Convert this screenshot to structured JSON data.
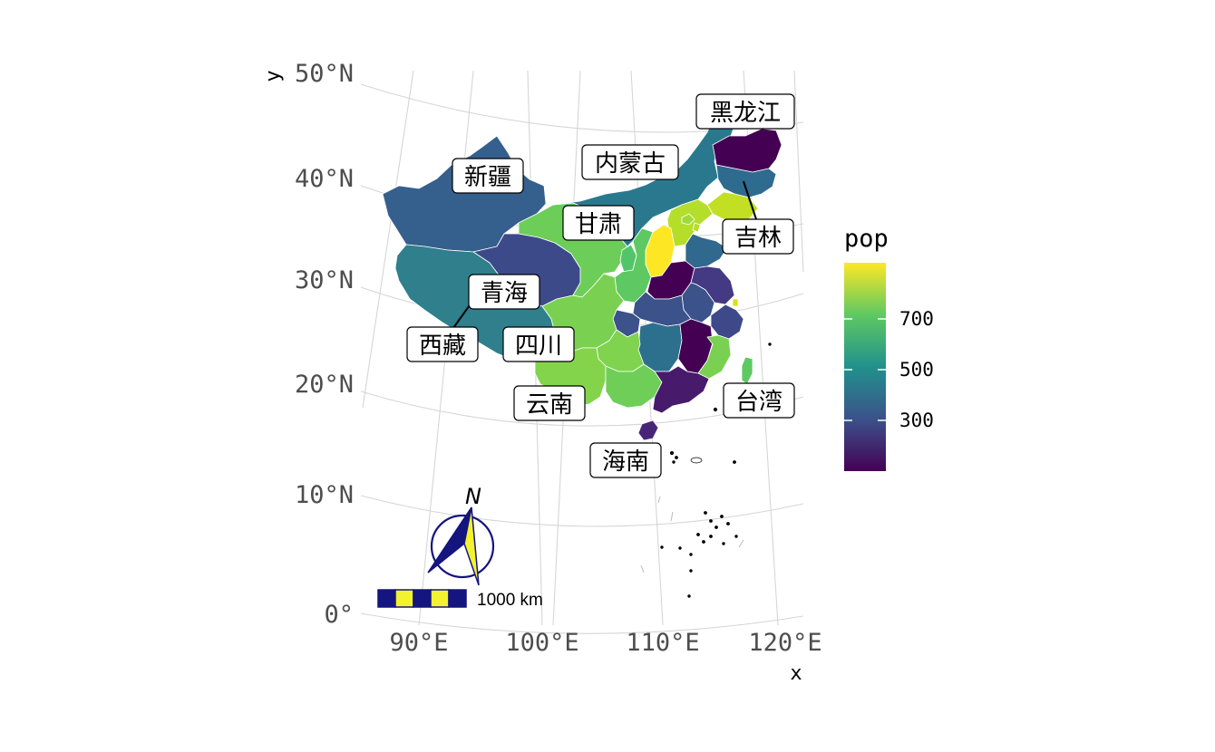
{
  "axes": {
    "x_title": "x",
    "y_title": "y",
    "lat_labels": [
      "50°N",
      "40°N",
      "30°N",
      "20°N",
      "10°N",
      "0°"
    ],
    "lon_labels": [
      "90°E",
      "100°E",
      "110°E",
      "120°E"
    ]
  },
  "legend": {
    "title": "pop",
    "ticks": [
      "700",
      "500",
      "300"
    ],
    "scale": "viridis",
    "gradient_colors": [
      "#440154",
      "#3b528b",
      "#21918c",
      "#5ec962",
      "#fde725"
    ]
  },
  "labels": {
    "heilongjiang": "黑龙江",
    "neimenggu": "内蒙古",
    "xinjiang": "新疆",
    "gansu": "甘肃",
    "jilin": "吉林",
    "qinghai": "青海",
    "xizang": "西藏",
    "sichuan": "四川",
    "yunnan": "云南",
    "taiwan": "台湾",
    "hainan": "海南"
  },
  "scale_bar": {
    "text": "1000 km",
    "colors": [
      "#15157f",
      "#f2f22e"
    ]
  },
  "north_arrow": {
    "text": "N",
    "colors": [
      "#15157f",
      "#f2f22e"
    ]
  },
  "province_colors": {
    "heilongjiang": "#440154",
    "jilin": "#2f6b8e",
    "liaoning": "#c2df23",
    "neimenggu": "#2a788e",
    "xinjiang": "#355f8d",
    "xizang": "#2f7f8c",
    "qinghai": "#3d4a89",
    "gansu": "#6cce59",
    "sichuan": "#7ad151",
    "yunnan": "#84d44b",
    "guizhou": "#7fd34e",
    "guangxi": "#6ece58",
    "guangdong": "#481a6c",
    "hunan": "#2d708e",
    "hubei": "#3b528b",
    "henan": "#440154",
    "shanxi": "#fde725",
    "shaanxi": "#5ec962",
    "ningxia": "#52c569",
    "hebei": "#b5de2b",
    "shandong": "#31688e",
    "jiangxi": "#440154",
    "fujian": "#7ad151",
    "anhui": "#3b528b",
    "jiangsu": "#443a83",
    "zhejiang": "#3e4989",
    "hainan": "#482677",
    "taiwan": "#5ec962",
    "beijing": "#9fda3a",
    "tianjin": "#b5de2b",
    "shanghai": "#d8e219",
    "chongqing": "#3b528b"
  }
}
